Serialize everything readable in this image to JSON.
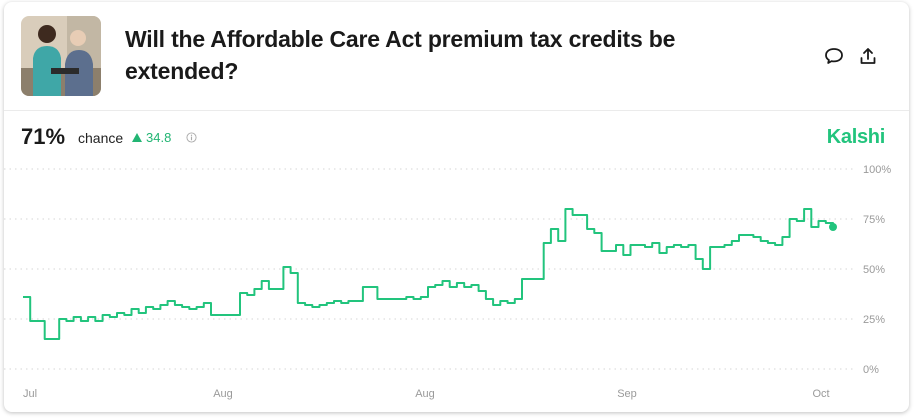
{
  "market": {
    "title": "Will the Affordable Care Act premium tax credits be extended?",
    "probability": "71%",
    "chance_label": "chance",
    "change": "34.8",
    "brand": "Kalshi"
  },
  "icons": {
    "comment": "speech-bubble-icon",
    "share": "share-upload-icon",
    "change_arrow": "triangle-up-icon",
    "info": "info-circle-icon"
  },
  "colors": {
    "line": "#22c47d",
    "brand": "#22c47d",
    "change": "#22b573"
  },
  "chart_data": {
    "type": "line",
    "title": "",
    "xlabel": "",
    "ylabel": "",
    "ylim": [
      0,
      100
    ],
    "y_ticks": [
      "100%",
      "75%",
      "50%",
      "25%",
      "0%"
    ],
    "x_tick_labels": [
      "Jul",
      "Aug",
      "Aug",
      "Sep",
      "Oct"
    ],
    "grid": true,
    "series": [
      {
        "values": [
          36,
          24,
          24,
          15,
          15,
          25,
          24,
          26,
          24,
          26,
          24,
          27,
          26,
          28,
          27,
          30,
          28,
          31,
          30,
          32,
          34,
          32,
          31,
          30,
          31,
          33,
          27,
          27,
          27,
          27,
          38,
          37,
          40,
          44,
          40,
          40,
          51,
          48,
          33,
          32,
          31,
          32,
          33,
          34,
          33,
          34,
          34,
          41,
          41,
          35,
          35,
          35,
          35,
          36,
          35,
          36,
          41,
          42,
          44,
          41,
          43,
          41,
          42,
          39,
          35,
          32,
          34,
          33,
          35,
          45,
          45,
          45,
          63,
          70,
          64,
          80,
          77,
          77,
          70,
          68,
          59,
          59,
          62,
          57,
          62,
          62,
          61,
          63,
          58,
          61,
          62,
          61,
          62,
          55,
          50,
          61,
          61,
          62,
          64,
          67,
          67,
          66,
          64,
          63,
          62,
          66,
          75,
          74,
          80,
          71,
          74,
          73,
          71
        ]
      }
    ]
  }
}
